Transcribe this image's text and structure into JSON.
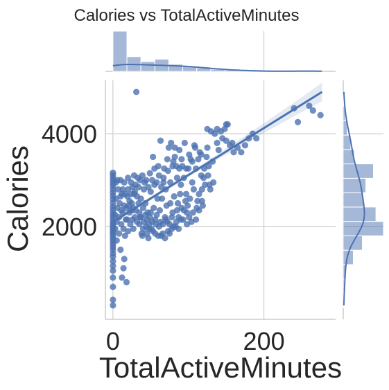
{
  "chart_data": {
    "type": "scatter",
    "title": "Calories vs TotalActiveMinutes",
    "xlabel": "TotalActiveMinutes",
    "ylabel": "Calories",
    "xlim": [
      -10,
      295
    ],
    "ylim": [
      0,
      5150
    ],
    "xticks": [
      0,
      200
    ],
    "xtick_labels": [
      "0",
      "200"
    ],
    "yticks": [
      2000,
      4000
    ],
    "ytick_labels": [
      "2000",
      "4000"
    ],
    "grid": true,
    "color": "#4c72b0",
    "regression_line": {
      "x": [
        0,
        277
      ],
      "y": [
        2100,
        4900
      ]
    },
    "x_hist": {
      "bin_edges": [
        0,
        18.5,
        37,
        55.5,
        74,
        92.5,
        111,
        129.5,
        148,
        166.5,
        185,
        203.5,
        222,
        240.5,
        259,
        277.5
      ],
      "counts": [
        205,
        75,
        50,
        62,
        36,
        28,
        18,
        10,
        7,
        4,
        3,
        2,
        1,
        1,
        1
      ]
    },
    "y_hist": {
      "bin_edges": [
        250,
        560,
        870,
        1180,
        1490,
        1800,
        2110,
        2420,
        2730,
        3040,
        3350,
        3660,
        3970,
        4280,
        4590,
        4900
      ],
      "counts": [
        1,
        2,
        5,
        20,
        38,
        80,
        65,
        40,
        45,
        60,
        22,
        15,
        8,
        4,
        1
      ]
    },
    "points": [
      [
        0,
        300
      ],
      [
        0,
        420
      ],
      [
        0,
        700
      ],
      [
        0,
        900
      ],
      [
        0,
        1050
      ],
      [
        0,
        1150
      ],
      [
        0,
        1250
      ],
      [
        0,
        1350
      ],
      [
        0,
        1420
      ],
      [
        0,
        1500
      ],
      [
        0,
        1560
      ],
      [
        0,
        1620
      ],
      [
        0,
        1680
      ],
      [
        0,
        1730
      ],
      [
        0,
        1790
      ],
      [
        0,
        1840
      ],
      [
        0,
        1880
      ],
      [
        0,
        1930
      ],
      [
        0,
        1970
      ],
      [
        0,
        2010
      ],
      [
        0,
        2060
      ],
      [
        0,
        2110
      ],
      [
        0,
        2170
      ],
      [
        0,
        2230
      ],
      [
        0,
        2290
      ],
      [
        0,
        2360
      ],
      [
        0,
        2430
      ],
      [
        0,
        2510
      ],
      [
        0,
        2590
      ],
      [
        0,
        2660
      ],
      [
        0,
        2730
      ],
      [
        0,
        2800
      ],
      [
        0,
        2870
      ],
      [
        0,
        2930
      ],
      [
        0,
        2990
      ],
      [
        0,
        3050
      ],
      [
        0,
        3110
      ],
      [
        0,
        3160
      ],
      [
        3,
        1950
      ],
      [
        3,
        2250
      ],
      [
        4,
        2600
      ],
      [
        4,
        2950
      ],
      [
        5,
        1700
      ],
      [
        5,
        2100
      ],
      [
        6,
        2400
      ],
      [
        6,
        3000
      ],
      [
        7,
        2800
      ],
      [
        8,
        1850
      ],
      [
        8,
        2200
      ],
      [
        9,
        2500
      ],
      [
        10,
        3000
      ],
      [
        10,
        1500
      ],
      [
        11,
        2050
      ],
      [
        12,
        2700
      ],
      [
        13,
        2300
      ],
      [
        14,
        1950
      ],
      [
        15,
        2950
      ],
      [
        16,
        1800
      ],
      [
        17,
        2150
      ],
      [
        18,
        2400
      ],
      [
        19,
        2650
      ],
      [
        20,
        1900
      ],
      [
        20,
        3050
      ],
      [
        22,
        2300
      ],
      [
        23,
        2050
      ],
      [
        24,
        2950
      ],
      [
        25,
        2500
      ],
      [
        26,
        2150
      ],
      [
        27,
        1950
      ],
      [
        28,
        3100
      ],
      [
        29,
        2750
      ],
      [
        30,
        2350
      ],
      [
        12,
        900
      ],
      [
        15,
        1300
      ],
      [
        18,
        800
      ],
      [
        14,
        1100
      ],
      [
        31,
        4900
      ],
      [
        33,
        3050
      ],
      [
        35,
        2050
      ],
      [
        36,
        2200
      ],
      [
        38,
        1850
      ],
      [
        40,
        2400
      ],
      [
        42,
        2950
      ],
      [
        44,
        2000
      ],
      [
        45,
        2150
      ],
      [
        47,
        1750
      ],
      [
        48,
        1950
      ],
      [
        50,
        2750
      ],
      [
        52,
        2100
      ],
      [
        53,
        3500
      ],
      [
        55,
        2900
      ],
      [
        56,
        1850
      ],
      [
        58,
        2250
      ],
      [
        60,
        3300
      ],
      [
        61,
        2000
      ],
      [
        63,
        3850
      ],
      [
        64,
        1800
      ],
      [
        65,
        2600
      ],
      [
        67,
        2950
      ],
      [
        68,
        3250
      ],
      [
        70,
        2150
      ],
      [
        72,
        3450
      ],
      [
        74,
        3700
      ],
      [
        75,
        2050
      ],
      [
        77,
        3800
      ],
      [
        78,
        2200
      ],
      [
        80,
        3400
      ],
      [
        82,
        3700
      ],
      [
        84,
        3300
      ],
      [
        86,
        2500
      ],
      [
        88,
        3650
      ],
      [
        90,
        2900
      ],
      [
        92,
        3300
      ],
      [
        95,
        3800
      ],
      [
        97,
        2700
      ],
      [
        99,
        2450
      ],
      [
        100,
        3250
      ],
      [
        103,
        3450
      ],
      [
        105,
        2950
      ],
      [
        108,
        3750
      ],
      [
        110,
        3250
      ],
      [
        112,
        2550
      ],
      [
        115,
        3600
      ],
      [
        118,
        2800
      ],
      [
        120,
        3050
      ],
      [
        125,
        3700
      ],
      [
        128,
        2900
      ],
      [
        130,
        4050
      ],
      [
        132,
        3400
      ],
      [
        135,
        4000
      ],
      [
        138,
        3800
      ],
      [
        140,
        3650
      ],
      [
        143,
        4050
      ],
      [
        145,
        3900
      ],
      [
        148,
        4100
      ],
      [
        150,
        3850
      ],
      [
        152,
        4200
      ],
      [
        155,
        3750
      ],
      [
        158,
        3800
      ],
      [
        160,
        3600
      ],
      [
        165,
        3700
      ],
      [
        170,
        3600
      ],
      [
        175,
        3750
      ],
      [
        180,
        3900
      ],
      [
        185,
        4000
      ],
      [
        190,
        3900
      ],
      [
        240,
        4550
      ],
      [
        245,
        4250
      ],
      [
        260,
        4600
      ],
      [
        265,
        4500
      ],
      [
        275,
        4400
      ],
      [
        150,
        4200
      ],
      [
        138,
        4100
      ],
      [
        125,
        4100
      ],
      [
        35,
        2300
      ],
      [
        37,
        2600
      ],
      [
        39,
        1800
      ],
      [
        41,
        2100
      ],
      [
        43,
        2500
      ],
      [
        46,
        2300
      ],
      [
        49,
        2200
      ],
      [
        51,
        1950
      ],
      [
        54,
        2400
      ],
      [
        57,
        2050
      ],
      [
        59,
        2600
      ],
      [
        62,
        2350
      ],
      [
        66,
        2050
      ],
      [
        69,
        2200
      ],
      [
        71,
        2450
      ],
      [
        73,
        1900
      ],
      [
        76,
        2500
      ],
      [
        79,
        2300
      ],
      [
        81,
        2650
      ],
      [
        83,
        2000
      ],
      [
        85,
        2350
      ],
      [
        87,
        2200
      ],
      [
        89,
        2700
      ],
      [
        91,
        2400
      ],
      [
        93,
        2150
      ],
      [
        96,
        2550
      ],
      [
        98,
        2300
      ],
      [
        102,
        2600
      ],
      [
        104,
        2100
      ],
      [
        107,
        2800
      ],
      [
        111,
        2400
      ],
      [
        114,
        2700
      ],
      [
        117,
        3100
      ],
      [
        119,
        2450
      ],
      [
        122,
        2900
      ],
      [
        126,
        3100
      ],
      [
        129,
        2800
      ],
      [
        133,
        2950
      ],
      [
        20,
        2800
      ],
      [
        22,
        2550
      ],
      [
        25,
        2350
      ],
      [
        28,
        2700
      ],
      [
        30,
        2900
      ],
      [
        32,
        2650
      ],
      [
        34,
        2850
      ],
      [
        36,
        3000
      ],
      [
        39,
        3100
      ],
      [
        41,
        2800
      ],
      [
        44,
        3000
      ],
      [
        47,
        2850
      ],
      [
        49,
        3150
      ],
      [
        52,
        3000
      ],
      [
        55,
        3250
      ],
      [
        58,
        2950
      ],
      [
        61,
        3100
      ],
      [
        64,
        2850
      ],
      [
        67,
        3050
      ],
      [
        70,
        2800
      ],
      [
        73,
        3200
      ],
      [
        76,
        2950
      ],
      [
        79,
        3300
      ],
      [
        82,
        3500
      ],
      [
        85,
        3050
      ],
      [
        88,
        3250
      ],
      [
        91,
        3450
      ],
      [
        94,
        3050
      ],
      [
        97,
        3250
      ],
      [
        101,
        3550
      ],
      [
        105,
        3400
      ],
      [
        109,
        3700
      ],
      [
        113,
        3450
      ],
      [
        117,
        3550
      ],
      [
        121,
        3250
      ],
      [
        124,
        3500
      ],
      [
        127,
        3300
      ],
      [
        10,
        2650
      ],
      [
        11,
        2350
      ],
      [
        13,
        2800
      ],
      [
        15,
        2450
      ],
      [
        16,
        2700
      ],
      [
        19,
        2150
      ],
      [
        21,
        2450
      ],
      [
        24,
        2700
      ],
      [
        26,
        2850
      ],
      [
        27,
        2400
      ],
      [
        29,
        2200
      ],
      [
        32,
        2100
      ],
      [
        34,
        2500
      ],
      [
        37,
        2200
      ],
      [
        40,
        1950
      ],
      [
        43,
        2250
      ],
      [
        45,
        1850
      ],
      [
        48,
        2050
      ],
      [
        50,
        2300
      ],
      [
        53,
        1900
      ],
      [
        56,
        2150
      ],
      [
        60,
        1800
      ],
      [
        63,
        2100
      ],
      [
        66,
        1850
      ],
      [
        69,
        1750
      ],
      [
        72,
        2100
      ],
      [
        75,
        1850
      ],
      [
        78,
        1950
      ],
      [
        80,
        2000
      ],
      [
        84,
        2100
      ],
      [
        87,
        1950
      ],
      [
        90,
        2150
      ],
      [
        94,
        2350
      ],
      [
        98,
        2050
      ],
      [
        101,
        2200
      ],
      [
        106,
        2300
      ],
      [
        110,
        2150
      ],
      [
        114,
        2350
      ],
      [
        118,
        2550
      ]
    ]
  }
}
